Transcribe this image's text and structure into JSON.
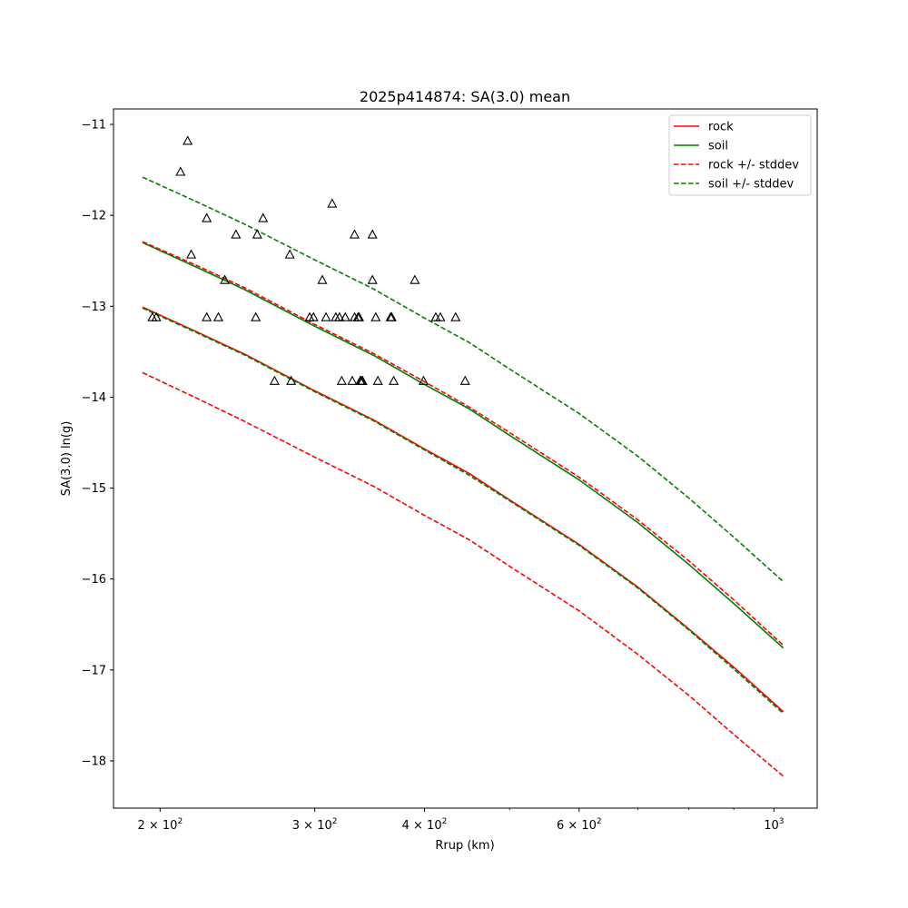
{
  "chart_data": {
    "type": "line",
    "title": "2025p414874: SA(3.0) mean",
    "xlabel": "Rrup (km)",
    "ylabel": "SA(3.0) ln(g)",
    "xscale": "log",
    "xlim": [
      177,
      1120
    ],
    "ylim": [
      -18.52,
      -10.83
    ],
    "grid": false,
    "legend_position": "upper right",
    "x_ticks": [
      {
        "value": 200,
        "label": "2 × 10",
        "exp": "2"
      },
      {
        "value": 300,
        "label": "3 × 10",
        "exp": "2"
      },
      {
        "value": 400,
        "label": "4 × 10",
        "exp": "2"
      },
      {
        "value": 600,
        "label": "6 × 10",
        "exp": "2"
      },
      {
        "value": 1000,
        "label": "10",
        "exp": "3"
      }
    ],
    "x_minor_ticks": [
      500,
      700,
      800,
      900
    ],
    "y_ticks": [
      {
        "value": -11,
        "label": "−11"
      },
      {
        "value": -12,
        "label": "−12"
      },
      {
        "value": -13,
        "label": "−13"
      },
      {
        "value": -14,
        "label": "−14"
      },
      {
        "value": -15,
        "label": "−15"
      },
      {
        "value": -16,
        "label": "−16"
      },
      {
        "value": -17,
        "label": "−17"
      },
      {
        "value": -18,
        "label": "−18"
      }
    ],
    "x": [
      191,
      220,
      250,
      300,
      350,
      400,
      450,
      500,
      600,
      700,
      800,
      900,
      1025
    ],
    "series": [
      {
        "name": "rock",
        "color": "#ff0000",
        "dash": false,
        "values": [
          -13.01,
          -13.28,
          -13.53,
          -13.93,
          -14.25,
          -14.57,
          -14.84,
          -15.13,
          -15.62,
          -16.09,
          -16.55,
          -16.97,
          -17.46
        ]
      },
      {
        "name": "soil",
        "color": "#008000",
        "dash": false,
        "values": [
          -12.3,
          -12.57,
          -12.82,
          -13.22,
          -13.54,
          -13.86,
          -14.13,
          -14.42,
          -14.91,
          -15.38,
          -15.84,
          -16.27,
          -16.76
        ]
      },
      {
        "name": "rock +/- stddev",
        "color": "#ff0000",
        "dash": true,
        "values": [
          -12.29,
          -12.55,
          -12.8,
          -13.2,
          -13.52,
          -13.83,
          -14.11,
          -14.39,
          -14.88,
          -15.35,
          -15.8,
          -16.23,
          -16.73
        ]
      },
      {
        "name": "",
        "color": "#ff0000",
        "dash": true,
        "values": [
          -13.73,
          -14.01,
          -14.27,
          -14.66,
          -14.98,
          -15.3,
          -15.57,
          -15.86,
          -16.35,
          -16.83,
          -17.28,
          -17.71,
          -18.17
        ]
      },
      {
        "name": "soil +/- stddev",
        "color": "#008000",
        "dash": true,
        "values": [
          -11.58,
          -11.85,
          -12.1,
          -12.49,
          -12.81,
          -13.13,
          -13.4,
          -13.69,
          -14.18,
          -14.65,
          -15.11,
          -15.54,
          -16.03
        ]
      },
      {
        "name": "",
        "color": "#008000",
        "dash": true,
        "values": [
          -13.02,
          -13.29,
          -13.54,
          -13.94,
          -14.26,
          -14.58,
          -14.86,
          -15.14,
          -15.63,
          -16.1,
          -16.56,
          -16.99,
          -17.48
        ]
      }
    ],
    "observations": {
      "marker": "triangle",
      "points": [
        [
          196,
          -13.12
        ],
        [
          198,
          -13.12
        ],
        [
          211,
          -11.52
        ],
        [
          215,
          -11.18
        ],
        [
          217,
          -12.43
        ],
        [
          226,
          -12.03
        ],
        [
          226,
          -13.12
        ],
        [
          233,
          -13.12
        ],
        [
          237,
          -12.71
        ],
        [
          244,
          -12.21
        ],
        [
          257,
          -13.12
        ],
        [
          258,
          -12.21
        ],
        [
          262,
          -12.03
        ],
        [
          270,
          -13.82
        ],
        [
          281,
          -12.43
        ],
        [
          282,
          -13.82
        ],
        [
          296,
          -13.12
        ],
        [
          299,
          -13.12
        ],
        [
          306,
          -12.71
        ],
        [
          309,
          -13.12
        ],
        [
          314,
          -11.87
        ],
        [
          317,
          -13.12
        ],
        [
          320,
          -13.12
        ],
        [
          322,
          -13.82
        ],
        [
          325,
          -13.12
        ],
        [
          331,
          -13.82
        ],
        [
          333,
          -13.12
        ],
        [
          333,
          -12.21
        ],
        [
          336,
          -13.12
        ],
        [
          337,
          -13.12
        ],
        [
          338,
          -13.82
        ],
        [
          339,
          -13.82
        ],
        [
          340,
          -13.82
        ],
        [
          349,
          -12.71
        ],
        [
          349,
          -12.21
        ],
        [
          352,
          -13.12
        ],
        [
          354,
          -13.82
        ],
        [
          366,
          -13.12
        ],
        [
          367,
          -13.12
        ],
        [
          369,
          -13.82
        ],
        [
          390,
          -12.71
        ],
        [
          399,
          -13.82
        ],
        [
          412,
          -13.12
        ],
        [
          417,
          -13.12
        ],
        [
          434,
          -13.12
        ],
        [
          445,
          -13.82
        ]
      ]
    }
  }
}
